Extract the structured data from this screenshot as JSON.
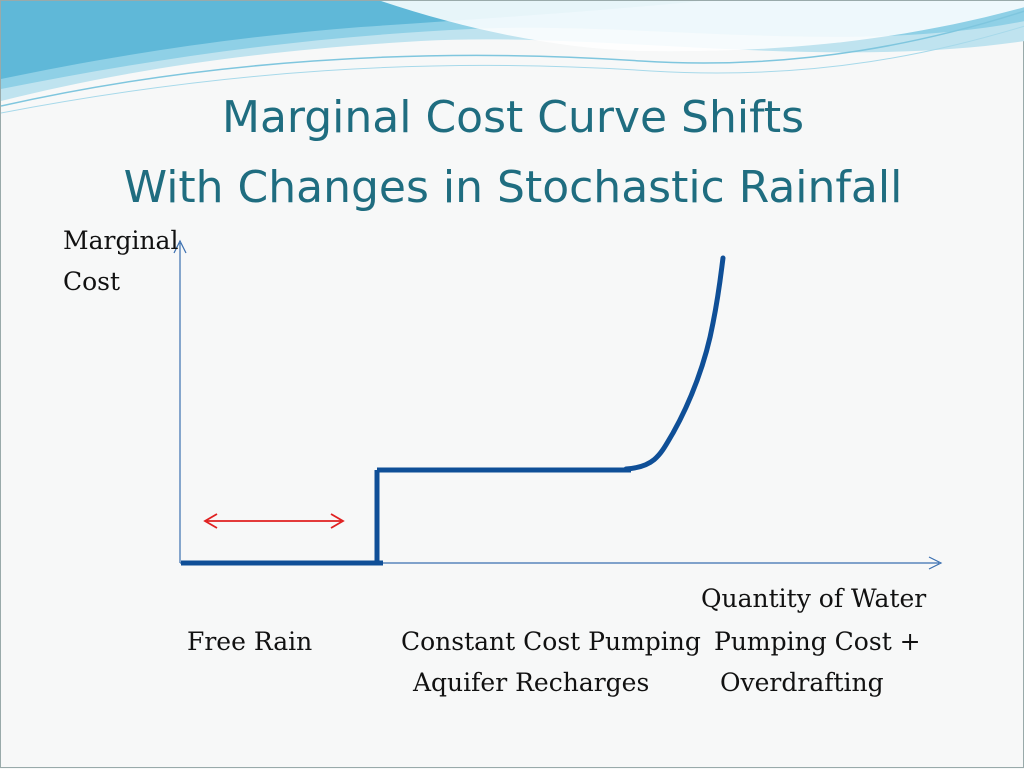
{
  "slide": {
    "title_line1": "Marginal Cost Curve Shifts",
    "title_line2": "With Changes in Stochastic Rainfall"
  },
  "axes": {
    "y_label_line1": "Marginal",
    "y_label_line2": "Cost",
    "x_label": "Quantity of Water"
  },
  "regions": {
    "free_rain": "Free Rain",
    "constant_cost_line1": "Constant Cost Pumping",
    "constant_cost_line2": "Aquifer Recharges",
    "pumping_cost_line1": "Pumping Cost +",
    "pumping_cost_line2": "Overdrafting"
  },
  "colors": {
    "title": "#1f6d80",
    "curve": "#0f4f97",
    "axis": "#3a6fb0",
    "shift_arrow": "#e02020"
  }
}
